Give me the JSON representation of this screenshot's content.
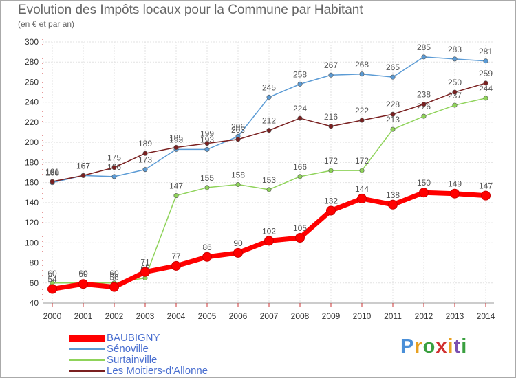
{
  "title": "Evolution des Impôts locaux pour la Commune par Habitant",
  "subtitle": "(en € et par an)",
  "logo": {
    "text": "Proxiti",
    "colors": [
      "#4a8fd8",
      "#e8a020",
      "#3aa040",
      "#d03030",
      "#e8a020",
      "#7a4fb0",
      "#3aa040"
    ]
  },
  "chart_data": {
    "type": "line",
    "x": [
      "2000",
      "2001",
      "2002",
      "2003",
      "2004",
      "2005",
      "2006",
      "2007",
      "2008",
      "2009",
      "2010",
      "2011",
      "2012",
      "2013",
      "2014"
    ],
    "ylim": [
      40,
      300
    ],
    "yticks": [
      40,
      60,
      80,
      100,
      120,
      140,
      160,
      180,
      200,
      220,
      240,
      260,
      280,
      300
    ],
    "grid": true,
    "legend": "bottom-left",
    "series": [
      {
        "name": "Sénoville",
        "color": "#5b9bd5",
        "values": [
          160,
          167,
          166,
          173,
          193,
          193,
          206,
          245,
          258,
          267,
          268,
          265,
          285,
          283,
          281
        ]
      },
      {
        "name": "Surtainville",
        "color": "#8fd35a",
        "values": [
          60,
          60,
          60,
          65,
          147,
          155,
          158,
          153,
          166,
          172,
          172,
          213,
          226,
          237,
          244
        ]
      },
      {
        "name": "Les Moitiers-d'Allonne",
        "color": "#7a2020",
        "values": [
          161,
          167,
          175,
          189,
          195,
          199,
          203,
          212,
          224,
          216,
          222,
          228,
          238,
          250,
          259
        ]
      },
      {
        "name": "BAUBIGNY",
        "color": "#ff0000",
        "values": [
          54,
          59,
          56,
          71,
          77,
          86,
          90,
          102,
          105,
          132,
          144,
          138,
          150,
          149,
          147
        ]
      }
    ]
  }
}
